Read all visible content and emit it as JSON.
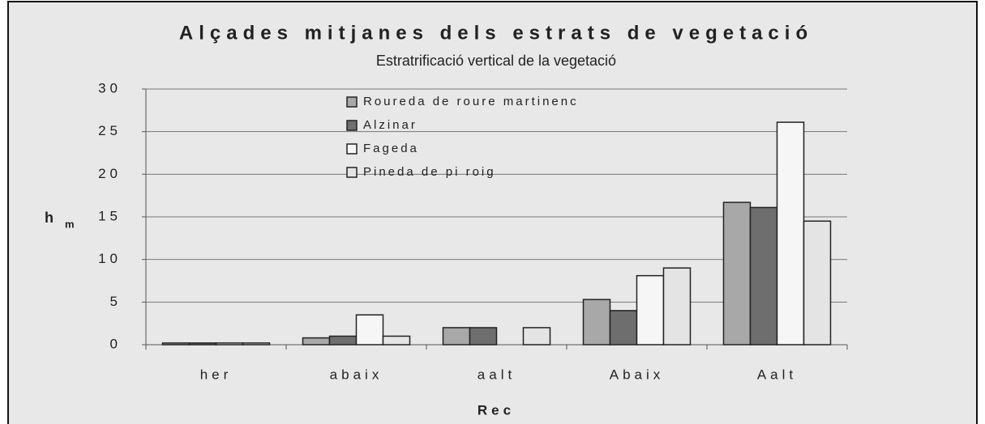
{
  "chart_data": {
    "type": "bar",
    "title": "Alçades mitjanes dels estrats de vegetació",
    "subtitle": "Estratrificació vertical de la vegetació",
    "y_label": "h",
    "y_label_sub": "m",
    "x_label": "Rec",
    "categories": [
      "her",
      "abaix",
      "aalt",
      "Abaix",
      "Aalt"
    ],
    "series": [
      {
        "name": "Roureda de roure martinenc",
        "color": "#a8a8a8",
        "values": [
          0.2,
          0.8,
          2,
          5.3,
          16.7
        ]
      },
      {
        "name": "Alzinar",
        "color": "#6e6e6e",
        "values": [
          0.2,
          1.0,
          2,
          4,
          16.1
        ]
      },
      {
        "name": "Fageda",
        "color": "#f6f6f6",
        "values": [
          0.2,
          3.5,
          0,
          8.1,
          26.1
        ]
      },
      {
        "name": "Pineda de pi roig",
        "color": "#e4e4e4",
        "values": [
          0.2,
          1.0,
          2,
          9,
          14.5
        ]
      }
    ],
    "ylim": [
      0,
      30
    ],
    "yticks": [
      0,
      5,
      10,
      15,
      20,
      25,
      30
    ],
    "grid": true,
    "legend": "top-center"
  }
}
